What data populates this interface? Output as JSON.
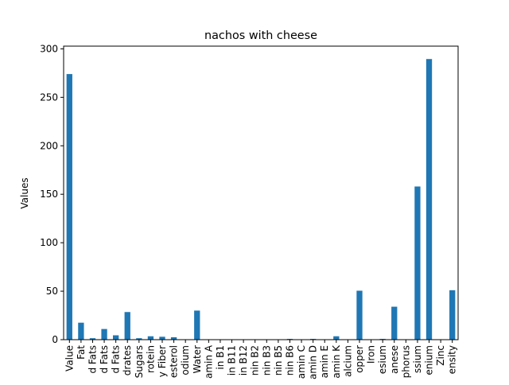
{
  "chart_data": {
    "type": "bar",
    "title": "nachos with cheese",
    "xlabel": "",
    "ylabel": "Values",
    "ylim": [
      0,
      302.8
    ],
    "yticks": [
      0,
      50,
      100,
      150,
      200,
      250,
      300
    ],
    "grid": false,
    "legend": "none",
    "bar_color": "#1f77b4",
    "categories": [
      "Value",
      "Fat",
      "d Fats",
      "d Fats",
      "d Fats",
      "drates",
      "Sugars",
      "rotein",
      "y Fiber",
      "esterol",
      "odium",
      "Water",
      "amin A",
      "in B1",
      "in B11",
      "in B12",
      "nin B2",
      "nin B3",
      "nin B5",
      "nin B6",
      "amin C",
      "amin D",
      "amin E",
      "amin K",
      "alcium",
      "opper",
      "Iron",
      "esium",
      "anese",
      "phorus",
      "ssium",
      "enium",
      "Zinc",
      "ensity"
    ],
    "values": [
      274,
      17.5,
      1.5,
      11,
      4.5,
      28.5,
      1.5,
      3.5,
      3,
      2.5,
      0,
      30,
      0,
      0,
      0,
      0,
      0,
      0,
      0,
      0.8,
      0,
      0.8,
      0.4,
      3.5,
      0,
      50.5,
      0,
      0.8,
      34,
      0,
      158,
      289.5,
      0,
      51
    ]
  }
}
